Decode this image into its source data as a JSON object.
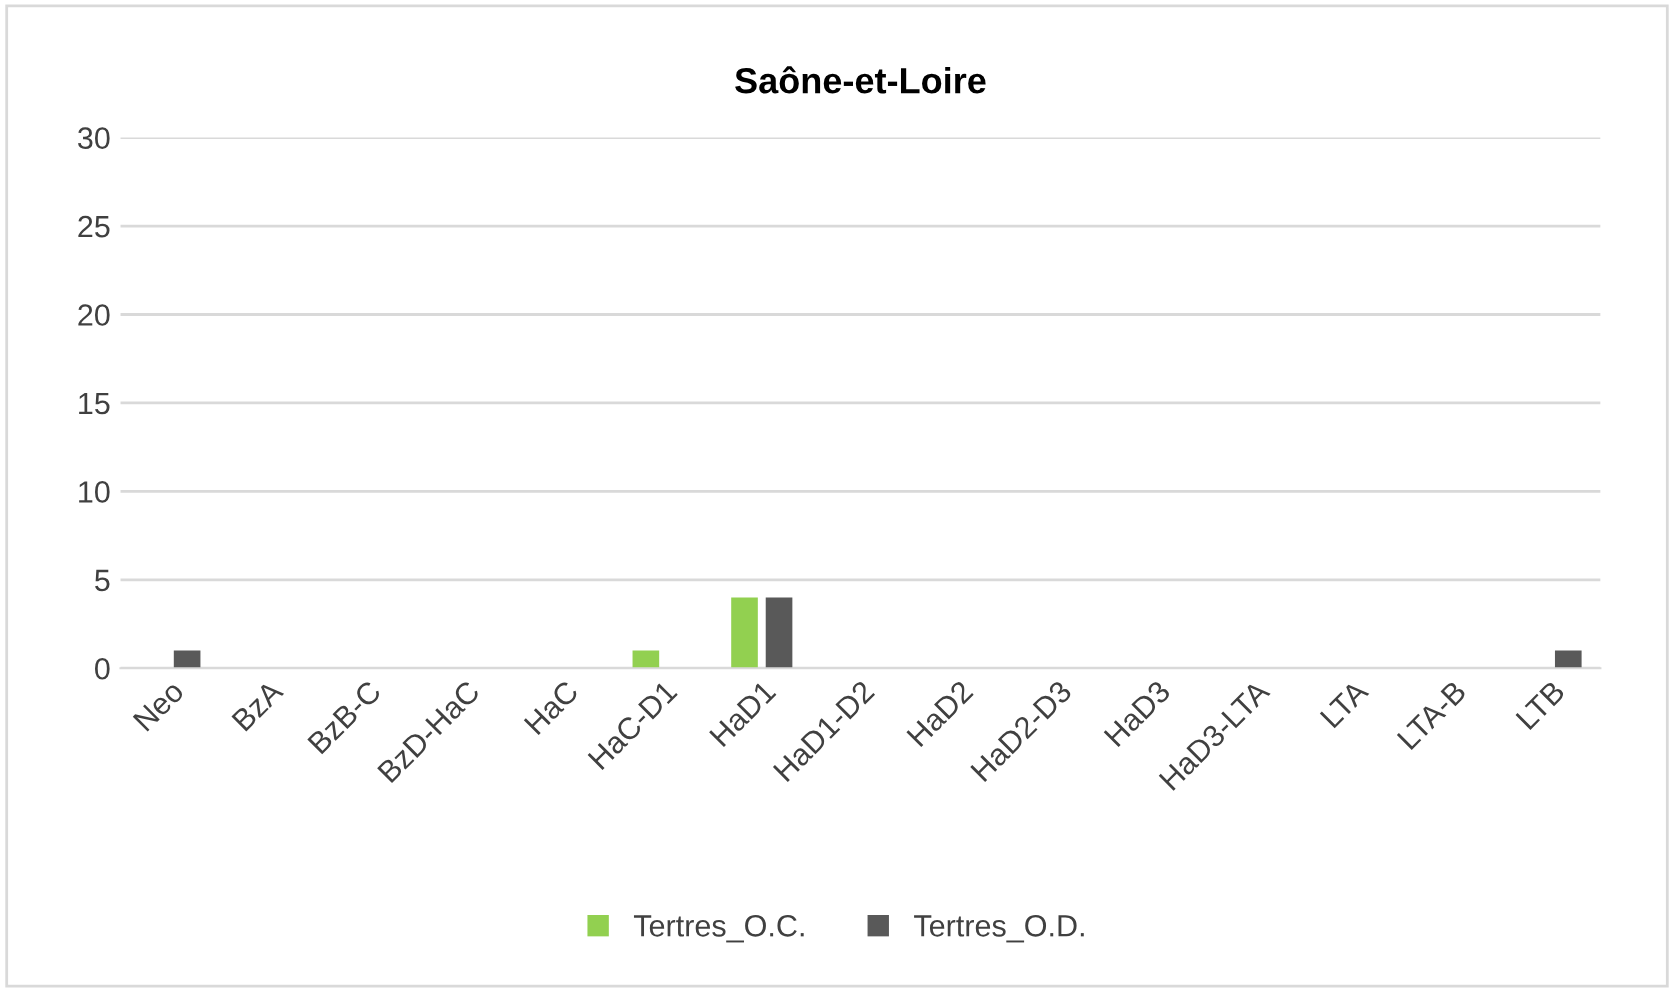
{
  "chart_data": {
    "type": "bar",
    "title": "Saône-et-Loire",
    "categories": [
      "Neo",
      "BzA",
      "BzB-C",
      "BzD-HaC",
      "HaC",
      "HaC-D1",
      "HaD1",
      "HaD1-D2",
      "HaD2",
      "HaD2-D3",
      "HaD3",
      "HaD3-LTA",
      "LTA",
      "LTA-B",
      "LTB"
    ],
    "series": [
      {
        "name": "Tertres_O.C.",
        "color": "#92d050",
        "values": [
          0,
          0,
          0,
          0,
          0,
          1,
          4,
          0,
          0,
          0,
          0,
          0,
          0,
          0,
          0
        ]
      },
      {
        "name": "Tertres_O.D.",
        "color": "#595959",
        "values": [
          1,
          0,
          0,
          0,
          0,
          0,
          4,
          0,
          0,
          0,
          0,
          0,
          0,
          0,
          1
        ]
      }
    ],
    "ylim": [
      0,
      30
    ],
    "yticks": [
      0,
      5,
      10,
      15,
      20,
      25,
      30
    ],
    "grid": "y",
    "legend": "bottom"
  }
}
